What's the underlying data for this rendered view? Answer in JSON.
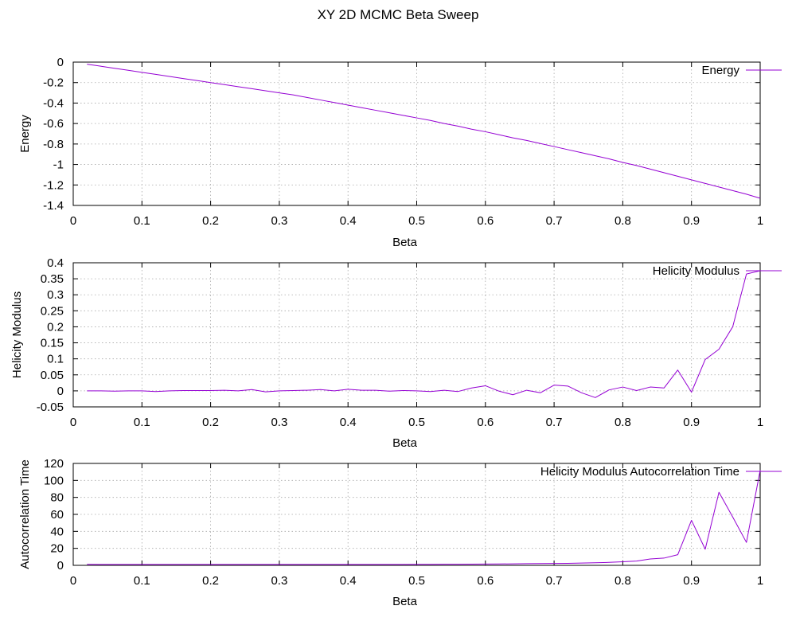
{
  "title": "XY 2D MCMC Beta Sweep",
  "line_color": "#9400d3",
  "chart_data": [
    {
      "type": "line",
      "xlabel": "Beta",
      "ylabel": "Energy",
      "xlim": [
        0,
        1
      ],
      "ylim": [
        -1.4,
        0
      ],
      "grid": true,
      "legend_position": "top-right",
      "x_ticks": [
        "0",
        "0.1",
        "0.2",
        "0.3",
        "0.4",
        "0.5",
        "0.6",
        "0.7",
        "0.8",
        "0.9",
        "1"
      ],
      "y_ticks": [
        "0",
        "-0.2",
        "-0.4",
        "-0.6",
        "-0.8",
        "-1",
        "-1.2",
        "-1.4"
      ],
      "x_tick_values": [
        0,
        0.1,
        0.2,
        0.3,
        0.4,
        0.5,
        0.6,
        0.7,
        0.8,
        0.9,
        1
      ],
      "y_tick_values": [
        0,
        -0.2,
        -0.4,
        -0.6,
        -0.8,
        -1,
        -1.2,
        -1.4
      ],
      "series": [
        {
          "name": "Energy",
          "x": [
            0.02,
            0.04,
            0.06,
            0.08,
            0.1,
            0.12,
            0.14,
            0.16,
            0.18,
            0.2,
            0.22,
            0.24,
            0.26,
            0.28,
            0.3,
            0.32,
            0.34,
            0.36,
            0.38,
            0.4,
            0.42,
            0.44,
            0.46,
            0.48,
            0.5,
            0.52,
            0.54,
            0.56,
            0.58,
            0.6,
            0.62,
            0.64,
            0.66,
            0.68,
            0.7,
            0.72,
            0.74,
            0.76,
            0.78,
            0.8,
            0.82,
            0.84,
            0.86,
            0.88,
            0.9,
            0.92,
            0.94,
            0.96,
            0.98,
            1.0
          ],
          "y": [
            -0.02,
            -0.04,
            -0.06,
            -0.08,
            -0.1,
            -0.12,
            -0.14,
            -0.16,
            -0.18,
            -0.2,
            -0.22,
            -0.24,
            -0.26,
            -0.28,
            -0.3,
            -0.32,
            -0.345,
            -0.37,
            -0.395,
            -0.42,
            -0.445,
            -0.47,
            -0.495,
            -0.52,
            -0.545,
            -0.57,
            -0.6,
            -0.625,
            -0.655,
            -0.68,
            -0.71,
            -0.74,
            -0.765,
            -0.795,
            -0.825,
            -0.855,
            -0.885,
            -0.915,
            -0.945,
            -0.98,
            -1.01,
            -1.045,
            -1.08,
            -1.115,
            -1.15,
            -1.185,
            -1.22,
            -1.255,
            -1.29,
            -1.33
          ]
        }
      ]
    },
    {
      "type": "line",
      "xlabel": "Beta",
      "ylabel": "Helicity Modulus",
      "xlim": [
        0,
        1
      ],
      "ylim": [
        -0.05,
        0.4
      ],
      "grid": true,
      "legend_position": "top-right",
      "x_ticks": [
        "0",
        "0.1",
        "0.2",
        "0.3",
        "0.4",
        "0.5",
        "0.6",
        "0.7",
        "0.8",
        "0.9",
        "1"
      ],
      "y_ticks": [
        "0.4",
        "0.35",
        "0.3",
        "0.25",
        "0.2",
        "0.15",
        "0.1",
        "0.05",
        "0",
        "-0.05"
      ],
      "x_tick_values": [
        0,
        0.1,
        0.2,
        0.3,
        0.4,
        0.5,
        0.6,
        0.7,
        0.8,
        0.9,
        1
      ],
      "y_tick_values": [
        0.4,
        0.35,
        0.3,
        0.25,
        0.2,
        0.15,
        0.1,
        0.05,
        0,
        -0.05
      ],
      "series": [
        {
          "name": "Helicity Modulus",
          "x": [
            0.02,
            0.04,
            0.06,
            0.08,
            0.1,
            0.12,
            0.14,
            0.16,
            0.18,
            0.2,
            0.22,
            0.24,
            0.26,
            0.28,
            0.3,
            0.32,
            0.34,
            0.36,
            0.38,
            0.4,
            0.42,
            0.44,
            0.46,
            0.48,
            0.5,
            0.52,
            0.54,
            0.56,
            0.58,
            0.6,
            0.62,
            0.64,
            0.66,
            0.68,
            0.7,
            0.72,
            0.74,
            0.76,
            0.78,
            0.8,
            0.82,
            0.84,
            0.86,
            0.88,
            0.9,
            0.92,
            0.94,
            0.96,
            0.98,
            1.0
          ],
          "y": [
            0,
            0,
            -0.001,
            0,
            0,
            -0.002,
            0,
            0.001,
            0.001,
            0.001,
            0.002,
            0,
            0.004,
            -0.003,
            0,
            0.001,
            0.002,
            0.004,
            0,
            0.005,
            0.002,
            0.002,
            -0.001,
            0.001,
            0,
            -0.002,
            0.002,
            -0.002,
            0.009,
            0.016,
            -0.001,
            -0.012,
            0.002,
            -0.006,
            0.018,
            0.015,
            -0.006,
            -0.021,
            0.003,
            0.012,
            0.001,
            0.012,
            0.009,
            0.065,
            -0.004,
            0.098,
            0.13,
            0.2,
            0.365,
            0.375
          ]
        }
      ]
    },
    {
      "type": "line",
      "xlabel": "Beta",
      "ylabel": "Autocorrelation Time",
      "xlim": [
        0,
        1
      ],
      "ylim": [
        0,
        120
      ],
      "grid": true,
      "legend_position": "top-right",
      "x_ticks": [
        "0",
        "0.1",
        "0.2",
        "0.3",
        "0.4",
        "0.5",
        "0.6",
        "0.7",
        "0.8",
        "0.9",
        "1"
      ],
      "y_ticks": [
        "120",
        "100",
        "80",
        "60",
        "40",
        "20",
        "0"
      ],
      "x_tick_values": [
        0,
        0.1,
        0.2,
        0.3,
        0.4,
        0.5,
        0.6,
        0.7,
        0.8,
        0.9,
        1
      ],
      "y_tick_values": [
        120,
        100,
        80,
        60,
        40,
        20,
        0
      ],
      "series": [
        {
          "name": "Helicity Modulus Autocorrelation Time",
          "x": [
            0.02,
            0.04,
            0.06,
            0.08,
            0.1,
            0.12,
            0.14,
            0.16,
            0.18,
            0.2,
            0.22,
            0.24,
            0.26,
            0.28,
            0.3,
            0.32,
            0.34,
            0.36,
            0.38,
            0.4,
            0.42,
            0.44,
            0.46,
            0.48,
            0.5,
            0.52,
            0.54,
            0.56,
            0.58,
            0.6,
            0.62,
            0.64,
            0.66,
            0.68,
            0.7,
            0.72,
            0.74,
            0.76,
            0.78,
            0.8,
            0.82,
            0.84,
            0.86,
            0.88,
            0.9,
            0.92,
            0.94,
            0.96,
            0.98,
            1.0
          ],
          "y": [
            1.2,
            1.1,
            1.1,
            1.1,
            1.1,
            1.0,
            1.0,
            1.0,
            1.0,
            1.0,
            1.0,
            1.0,
            1.0,
            1.0,
            1.0,
            1.0,
            1.1,
            1.1,
            1.1,
            1.1,
            1.1,
            1.1,
            1.1,
            1.1,
            1.2,
            1.2,
            1.3,
            1.3,
            1.4,
            1.5,
            1.6,
            1.8,
            2.0,
            2.1,
            2.2,
            2.4,
            2.7,
            3.0,
            3.5,
            4.2,
            5.0,
            7.5,
            8.5,
            12.5,
            53,
            19,
            86,
            57,
            27,
            112
          ]
        }
      ]
    }
  ]
}
